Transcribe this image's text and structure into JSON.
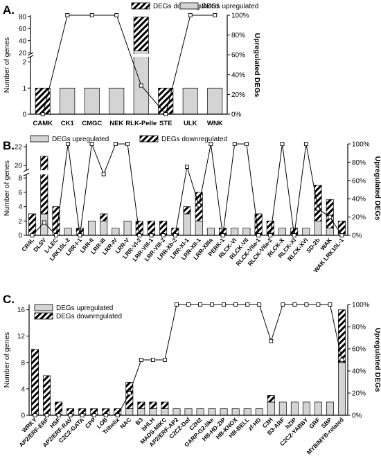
{
  "colors": {
    "bar_fill": "#d4d4d4",
    "hatch": "#000000",
    "line": "#000000",
    "marker_fill": "#ffffff"
  },
  "chart_data": [
    {
      "type": "bar",
      "panel_label": "A.",
      "ylabel": "Number of genes",
      "y2label": "Upregulated DEGs",
      "legend": [
        {
          "key": "down",
          "label": "DEGs downregulated"
        },
        {
          "key": "up",
          "label": "DEGs upregulated"
        }
      ],
      "legend_placement": "top",
      "broken_axis": true,
      "y_ticks_lower": [
        "0",
        "1",
        "2"
      ],
      "y_ticks_upper": [
        "20",
        "40",
        "60",
        "80"
      ],
      "y2_ticks": [
        "0%",
        "20%",
        "40%",
        "60%",
        "80%",
        "100%"
      ],
      "categories": [
        "CAMK",
        "CK1",
        "CMGC",
        "NEK",
        "RLK-Pelle",
        "STE",
        "ULK",
        "WNK"
      ],
      "series": [
        {
          "name": "DEGs upregulated",
          "values": [
            0,
            1,
            1,
            1,
            23,
            0,
            1,
            1
          ]
        },
        {
          "name": "DEGs downregulated",
          "values": [
            1,
            0,
            0,
            0,
            56,
            1,
            0,
            0
          ]
        }
      ],
      "line_series": {
        "axis": "right",
        "unit": "%",
        "values": [
          0,
          100,
          100,
          100,
          29,
          0,
          100,
          100
        ]
      }
    },
    {
      "type": "bar",
      "panel_label": "B.",
      "ylabel": "Number of genes",
      "y2label": "Upregulated DEGs",
      "legend": [
        {
          "key": "up",
          "label": "DEGs upregulated"
        },
        {
          "key": "down",
          "label": "DEGs downregulated"
        }
      ],
      "legend_placement": "top",
      "broken_axis": true,
      "y_ticks_lower": [
        "0",
        "2",
        "4",
        "6",
        "8"
      ],
      "y_ticks_upper": [
        "20",
        "22"
      ],
      "y2_ticks": [
        "0%",
        "20%",
        "40%",
        "60%",
        "80%",
        "100%"
      ],
      "categories": [
        "CR4L",
        "DLSV",
        "L-LEC",
        "LRK10L-2",
        "LRR-I-1",
        "LRR-II",
        "LRR-III",
        "LRR-IV",
        "LRR-V",
        "LRR-VI-2",
        "LRR-VIII-1",
        "LRR-VIII-2",
        "LRR-Xb-2",
        "LRR-XI-1",
        "LRR-XII-1",
        "LRR-XIIIa",
        "PERK-1",
        "RLCK-VI",
        "RLCK-VII",
        "RLCK-VIIa-1",
        "RLCK-VIIa-2",
        "RLCK-X",
        "RLCK-XI",
        "RLCK-XVI",
        "SD-2b",
        "WAK",
        "WAK LRK10L-1"
      ],
      "series": [
        {
          "name": "DEGs upregulated",
          "values": [
            0,
            3,
            0,
            1,
            0,
            2,
            2,
            1,
            2,
            0,
            0,
            0,
            0,
            3,
            2,
            1,
            0,
            1,
            1,
            0,
            0,
            1,
            0,
            1,
            2,
            1,
            0
          ]
        },
        {
          "name": "DEGs downregulated",
          "values": [
            3,
            18,
            4,
            0,
            1,
            0,
            1,
            0,
            0,
            2,
            2,
            2,
            1,
            1,
            4,
            0,
            1,
            0,
            0,
            3,
            2,
            0,
            1,
            0,
            5,
            4,
            2
          ]
        }
      ],
      "line_series": {
        "axis": "right",
        "unit": "%",
        "values": [
          0,
          14,
          0,
          100,
          0,
          100,
          67,
          100,
          100,
          0,
          0,
          0,
          0,
          75,
          33,
          100,
          0,
          100,
          100,
          0,
          0,
          100,
          0,
          100,
          29,
          20,
          0
        ]
      }
    },
    {
      "type": "bar",
      "panel_label": "C.",
      "ylabel": "Number of genes",
      "y2label": "Upregulated DEGs",
      "legend": [
        {
          "key": "up",
          "label": "DEGs upregulated"
        },
        {
          "key": "down",
          "label": "DEGs downregulated"
        }
      ],
      "legend_placement": "top-left",
      "broken_axis": false,
      "y_ticks_lower": [
        "0",
        "4",
        "8",
        "12",
        "16"
      ],
      "y2_ticks": [
        "0%",
        "20%",
        "40%",
        "60%",
        "80%",
        "100%"
      ],
      "categories": [
        "WRKY",
        "AP2/ERF-ERF",
        "HSF",
        "AP2/ERF-RAV",
        "C2C2-GATA",
        "CPP",
        "LOB",
        "Trihelix",
        "NAC",
        "B3",
        "bHLH",
        "MADS-MIKC",
        "AP2/ERF-AP2",
        "C2C2-Dof",
        "C2H2",
        "GARP-G2-like",
        "HB-HD-ZIP",
        "HB-KNOX",
        "HB-BELL",
        "zf-HD",
        "C3H",
        "B3-ARF",
        "bZIP",
        "C2C2-YABBY",
        "GRF",
        "SBP",
        "MYB/MYB-related"
      ],
      "series": [
        {
          "name": "DEGs upregulated",
          "values": [
            0,
            0,
            0,
            0,
            0,
            0,
            0,
            0,
            1,
            1,
            1,
            1,
            1,
            1,
            1,
            1,
            1,
            1,
            1,
            1,
            2,
            2,
            2,
            2,
            2,
            2,
            8
          ]
        },
        {
          "name": "DEGs downregulated",
          "values": [
            10,
            6,
            2,
            1,
            1,
            1,
            1,
            1,
            4,
            1,
            1,
            1,
            0,
            0,
            0,
            0,
            0,
            0,
            0,
            0,
            1,
            0,
            0,
            0,
            0,
            0,
            8
          ]
        }
      ],
      "line_series": {
        "axis": "right",
        "unit": "%",
        "values": [
          0,
          0,
          0,
          0,
          0,
          0,
          0,
          0,
          20,
          50,
          50,
          50,
          100,
          100,
          100,
          100,
          100,
          100,
          100,
          100,
          67,
          100,
          100,
          100,
          100,
          100,
          50
        ]
      }
    }
  ]
}
